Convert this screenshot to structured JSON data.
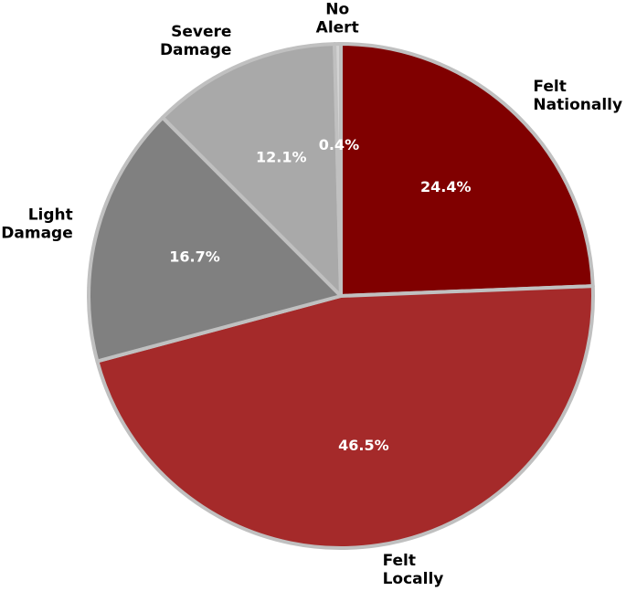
{
  "chart_data": {
    "type": "pie",
    "title": "",
    "start_angle_deg": 90,
    "direction": "clockwise",
    "slices": [
      {
        "label_lines": [
          "Felt",
          "Nationally"
        ],
        "value": 24.4,
        "pct_label": "24.4%",
        "color": "#800000"
      },
      {
        "label_lines": [
          "Felt",
          "Locally"
        ],
        "value": 46.5,
        "pct_label": "46.5%",
        "color": "#a52a2a"
      },
      {
        "label_lines": [
          "Light",
          "Damage"
        ],
        "value": 16.7,
        "pct_label": "16.7%",
        "color": "#808080"
      },
      {
        "label_lines": [
          "Severe",
          "Damage"
        ],
        "value": 12.1,
        "pct_label": "12.1%",
        "color": "#a9a9a9"
      },
      {
        "label_lines": [
          "No",
          "Alert"
        ],
        "value": 0.4,
        "pct_label": "0.4%",
        "color": "#d3d3d3"
      }
    ],
    "edge_color": "#c0c0c0"
  }
}
